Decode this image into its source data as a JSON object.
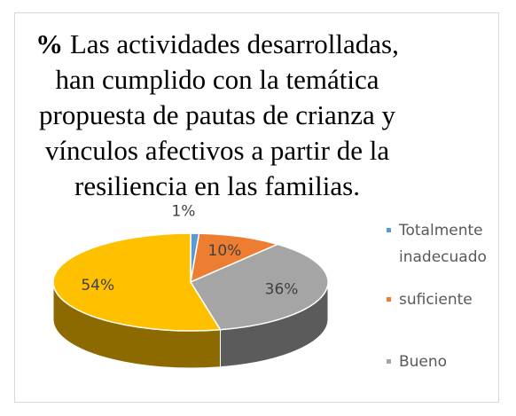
{
  "chart_data": {
    "type": "pie",
    "title": [
      "%",
      "Las actividades desarrolladas, han cumplido con la temática propuesta de pautas de crianza y vínculos afectivos a partir de la resiliencia en las familias."
    ],
    "categories": [
      "Totalmente inadecuado",
      "suficiente",
      "Bueno",
      null
    ],
    "values": [
      1,
      10,
      36,
      54
    ],
    "value_labels": [
      "1%",
      "10%",
      "36%",
      "54%"
    ],
    "colors": [
      "#5b9bd5",
      "#ed7d31",
      "#a5a5a5",
      "#ffc000"
    ],
    "legend": "right"
  }
}
